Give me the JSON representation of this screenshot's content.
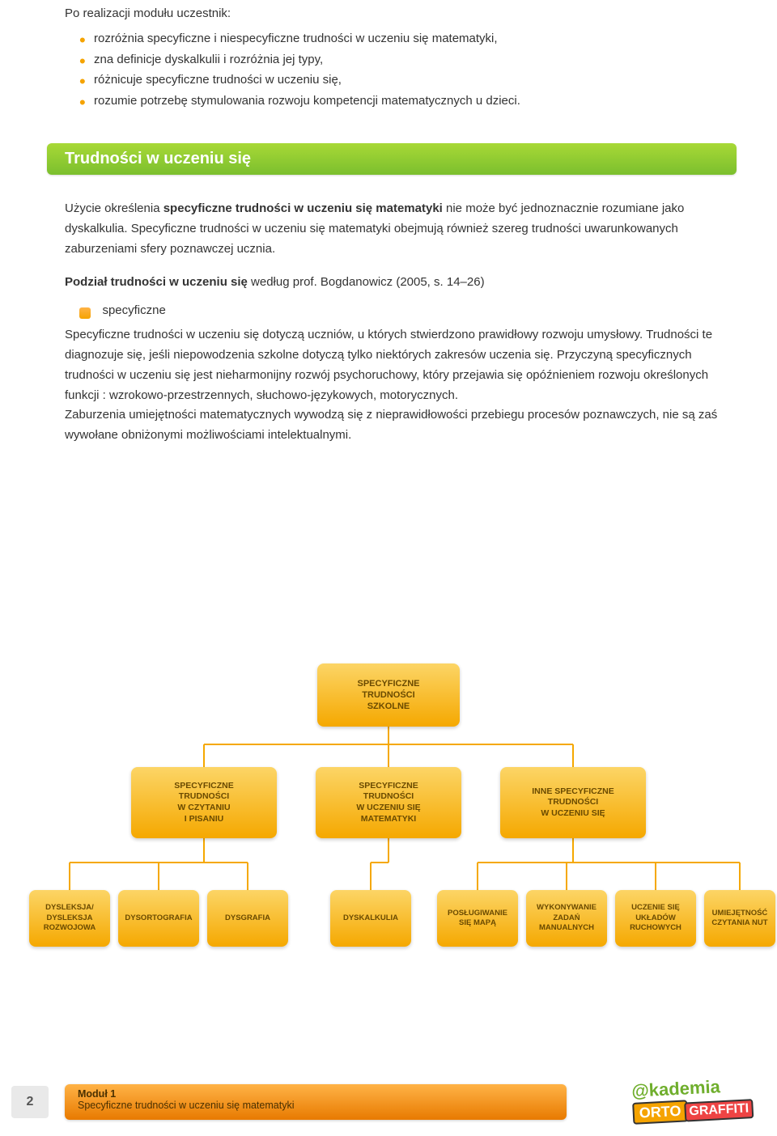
{
  "intro": {
    "heading": "Po realizacji modułu uczestnik:",
    "bullets": [
      "rozróżnia specyficzne i niespecyficzne trudności w uczeniu się matematyki,",
      "zna definicje dyskalkulii i rozróżnia jej typy,",
      "różnicuje specyficzne trudności w uczeniu się,",
      "rozumie potrzebę stymulowania rozwoju kompetencji matematycznych u dzieci."
    ]
  },
  "section_title": "Trudności w uczeniu się",
  "para1_part1": "Użycie określenia ",
  "para1_bold": "specyficzne trudności w uczeniu się matematyki",
  "para1_part2": " nie może być jednoznacznie rozumiane jako dyskalkulia. Specyficzne trudności w uczeniu się matematyki obejmują również szereg trudności uwarunkowanych zaburzeniami sfery poznawczej ucznia.",
  "subhead_bold": "Podział trudności w uczeniu się",
  "subhead_rest": " według prof. Bogdanowicz (2005, s. 14–26)",
  "spec_label": "specyficzne",
  "para2": "Specyficzne trudności  w uczeniu się dotyczą uczniów, u których stwierdzono prawidłowy rozwoju umysłowy. Trudności te diagnozuje się, jeśli niepowodzenia szkolne dotyczą tylko niektórych zakresów uczenia się. Przyczyną specyficznych trudności w uczeniu się jest nieharmonijny rozwój psychoruchowy, który przejawia się opóźnieniem rozwoju określonych funkcji : wzrokowo-przestrzennych, słuchowo-językowych, motorycznych.",
  "para3": "Zaburzenia umiejętności matematycznych wywodzą się z nieprawidłowości przebiegu procesów poznawczych, nie są zaś wywołane obniżonymi możliwościami intelektualnymi.",
  "diagram": {
    "root": "SPECYFICZNE\nTRUDNOŚCI\nSZKOLNE",
    "mid": [
      "SPECYFICZNE\nTRUDNOŚCI\nW CZYTANIU\nI PISANIU",
      "SPECYFICZNE\nTRUDNOŚCI\nW UCZENIU SIĘ\nMATEMATYKI",
      "INNE SPECYFICZNE\nTRUDNOŚCI\nW UCZENIU SIĘ"
    ],
    "leaves": [
      "DYSLEKSJA/\nDYSLEKSJA\nROZWOJOWA",
      "DYSORTOGRAFIA",
      "DYSGRAFIA",
      "DYSKALKULIA",
      "POSŁUGIWANIE\nSIĘ MAPĄ",
      "WYKONYWANIE\nZADAŃ\nMANUALNYCH",
      "UCZENIE SIĘ\nUKŁADÓW\nRUCHOWYCH",
      "UMIEJĘTNOŚĆ\nCZYTANIA NUT"
    ],
    "node_gradient_top": "#fcd566",
    "node_gradient_bottom": "#f5a800",
    "connector_color": "#f5a800"
  },
  "footer": {
    "page": "2",
    "line1": "Moduł 1",
    "line2": "Specyficzne trudności w uczeniu się matematyki",
    "logo_text1": "@kademia",
    "logo_text2": "ORTO",
    "logo_text3": "GRAFFITI"
  }
}
